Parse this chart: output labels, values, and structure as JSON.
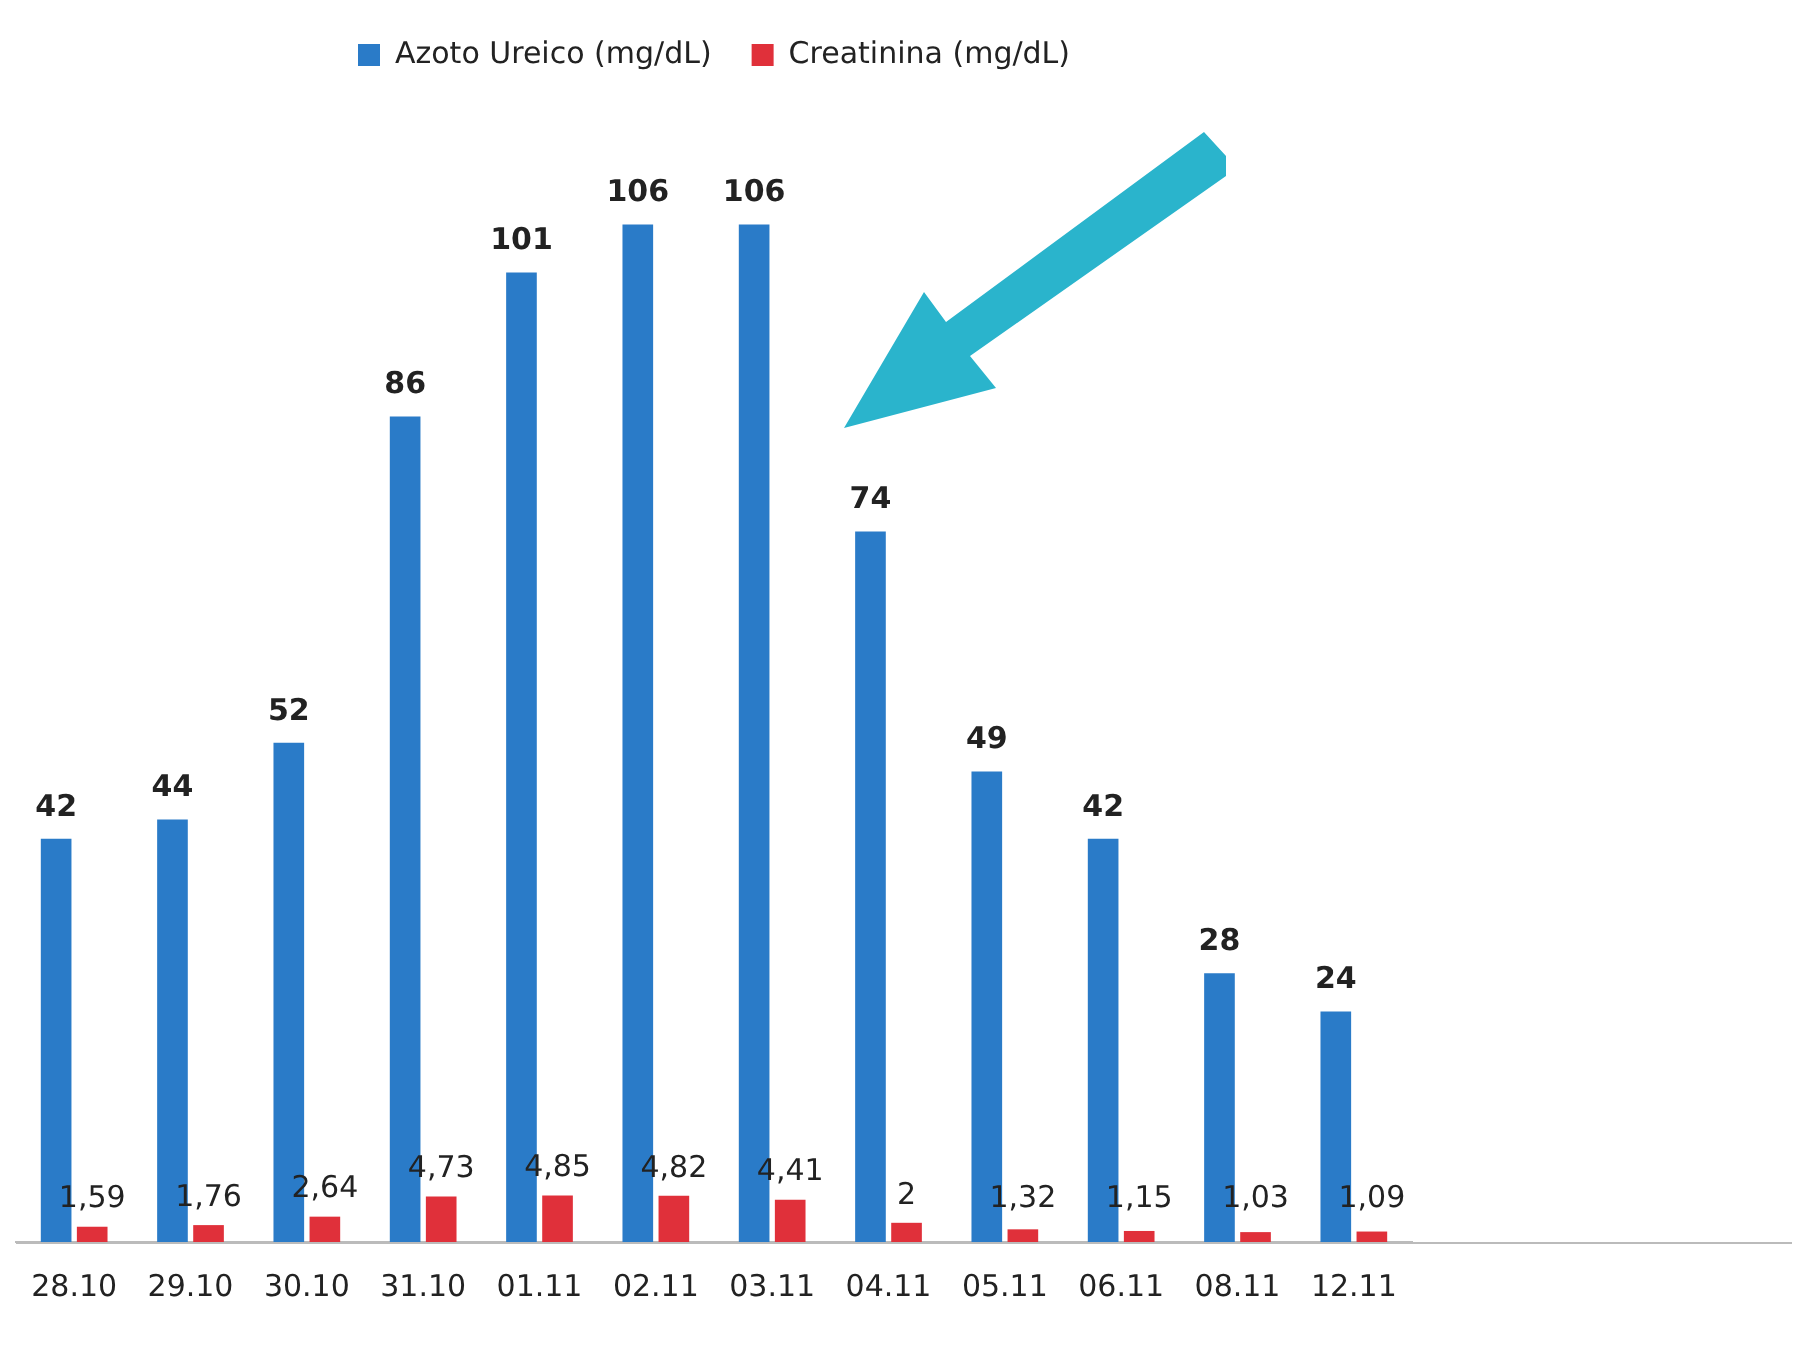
{
  "chart_data": {
    "type": "bar",
    "categories": [
      "28.10",
      "29.10",
      "30.10",
      "31.10",
      "01.11",
      "02.11",
      "03.11",
      "04.11",
      "05.11",
      "06.11",
      "08.11",
      "12.11"
    ],
    "series": [
      {
        "name": "Azoto Ureico (mg/dL)",
        "color": "#2a7bc8",
        "values": [
          42,
          44,
          52,
          86,
          101,
          106,
          106,
          74,
          49,
          42,
          28,
          24
        ],
        "value_labels": [
          "42",
          "44",
          "52",
          "86",
          "101",
          "106",
          "106",
          "74",
          "49",
          "42",
          "28",
          "24"
        ]
      },
      {
        "name": "Creatinina (mg/dL)",
        "color": "#e0303a",
        "values": [
          1.59,
          1.76,
          2.64,
          4.73,
          4.85,
          4.82,
          4.41,
          2,
          1.32,
          1.15,
          1.03,
          1.09
        ],
        "value_labels": [
          "1,59",
          "1,76",
          "2,64",
          "4,73",
          "4,85",
          "4,82",
          "4,41",
          "2",
          "1,32",
          "1,15",
          "1,03",
          "1,09"
        ]
      }
    ],
    "legend": "top",
    "grid": false,
    "tick_labels": "x"
  }
}
